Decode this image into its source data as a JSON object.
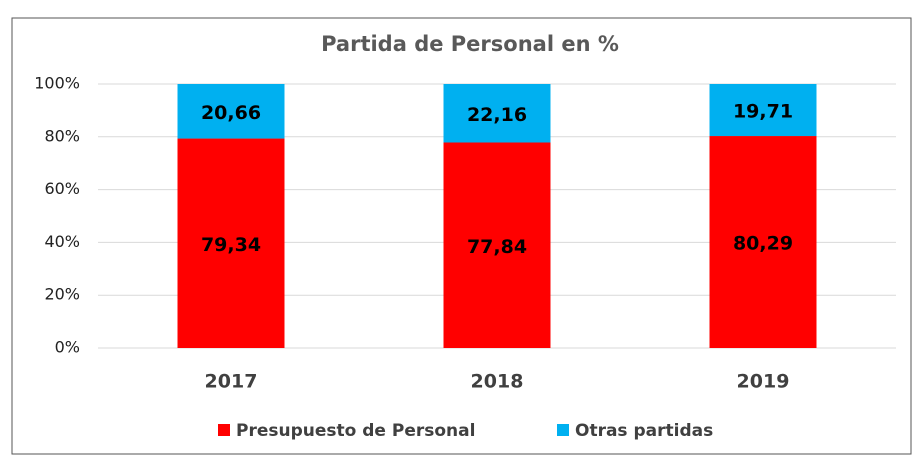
{
  "chart_data": {
    "type": "stacked_bar",
    "title": "Partida de Personal en %",
    "categories": [
      "2017",
      "2018",
      "2019"
    ],
    "series": [
      {
        "name": "Presupuesto de Personal",
        "color": "#ff0000",
        "values": [
          79.34,
          77.84,
          80.29
        ],
        "value_labels": [
          "79,34",
          "77,84",
          "80,29"
        ]
      },
      {
        "name": "Otras partidas",
        "color": "#00b0f0",
        "values": [
          20.66,
          22.16,
          19.71
        ],
        "value_labels": [
          "20,66",
          "22,16",
          "19,71"
        ]
      }
    ],
    "ylim": [
      0,
      100
    ],
    "yticks": [
      {
        "value": 0,
        "label": "0%"
      },
      {
        "value": 20,
        "label": "20%"
      },
      {
        "value": 40,
        "label": "40%"
      },
      {
        "value": 60,
        "label": "60%"
      },
      {
        "value": 80,
        "label": "80%"
      },
      {
        "value": 100,
        "label": "100%"
      }
    ],
    "grid": true,
    "legend": "bottom"
  }
}
